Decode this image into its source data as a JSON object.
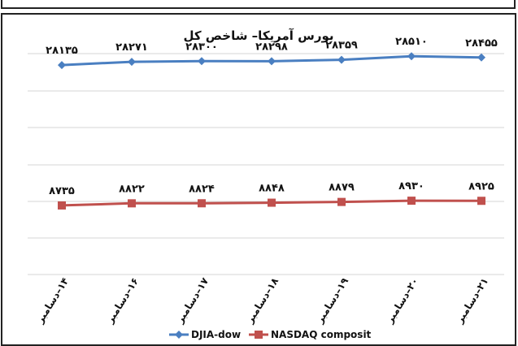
{
  "chart_data": {
    "type": "line",
    "title": "بورس آمریکا– شاخص کل",
    "categories": [
      "۱۴–دسامبر",
      "۱۶–دسامبر",
      "۱۷–دسامبر",
      "۱۸–دسامبر",
      "۱۹–دسامبر",
      "۲۰–دسامبر",
      "۲۱–دسامبر"
    ],
    "series": [
      {
        "name": "DJIA-dow",
        "values": [
          28135,
          28271,
          28300,
          28298,
          28359,
          28510,
          28455
        ],
        "labels": [
          "۲۸۱۳۵",
          "۲۸۲۷۱",
          "۲۸۳۰۰",
          "۲۸۲۹۸",
          "۲۸۳۵۹",
          "۲۸۵۱۰",
          "۲۸۴۵۵"
        ],
        "color": "#4a7fc1",
        "marker": "diamond"
      },
      {
        "name": "NASDAQ composit",
        "values": [
          8735,
          8822,
          8824,
          8848,
          8879,
          8930,
          8925
        ],
        "labels": [
          "۸۷۳۵",
          "۸۸۲۲",
          "۸۸۲۴",
          "۸۸۴۸",
          "۸۸۷۹",
          "۸۹۳۰",
          "۸۹۲۵"
        ],
        "color": "#c0504d",
        "marker": "square"
      }
    ],
    "grid": true,
    "legend_position": "bottom"
  }
}
